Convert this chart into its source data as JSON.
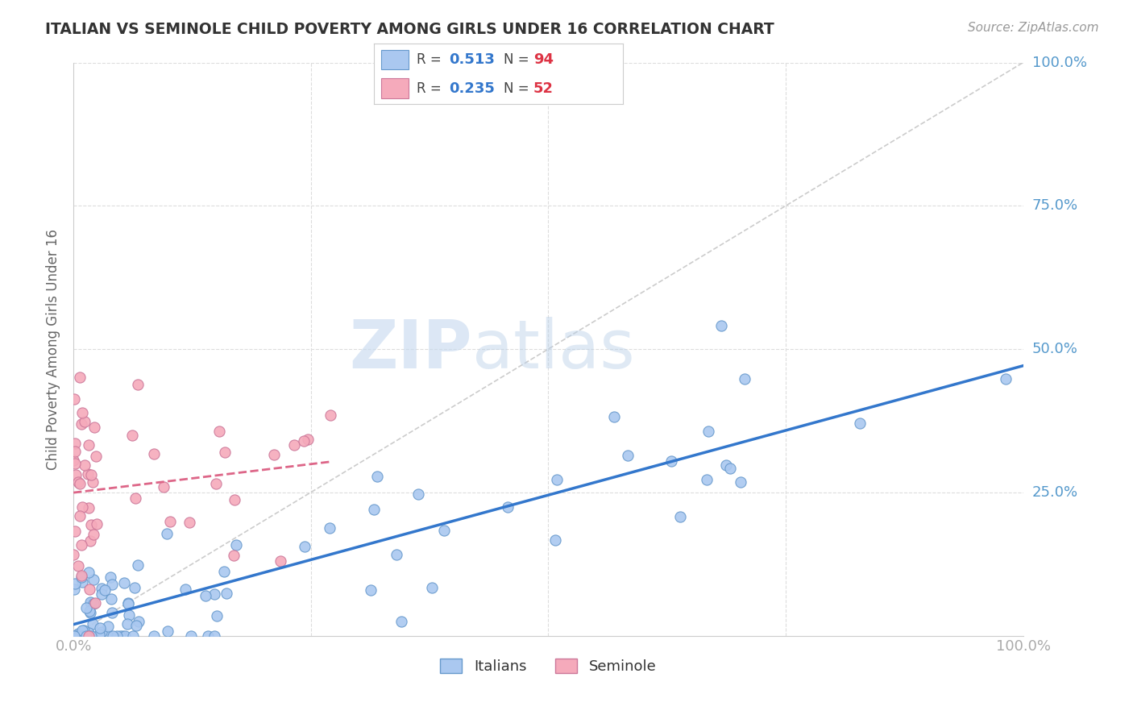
{
  "title": "ITALIAN VS SEMINOLE CHILD POVERTY AMONG GIRLS UNDER 16 CORRELATION CHART",
  "source": "Source: ZipAtlas.com",
  "ylabel": "Child Poverty Among Girls Under 16",
  "xlim": [
    0,
    1
  ],
  "ylim": [
    0,
    1
  ],
  "watermark_zip": "ZIP",
  "watermark_atlas": "atlas",
  "italian_color": "#aac8f0",
  "italian_edge": "#6699cc",
  "seminole_color": "#f5aabb",
  "seminole_edge": "#cc7799",
  "italian_R": 0.513,
  "italian_N": 94,
  "seminole_R": 0.235,
  "seminole_N": 52,
  "italian_line_color": "#3377cc",
  "seminole_line_color": "#dd6688",
  "ref_line_color": "#cccccc",
  "grid_color": "#dddddd",
  "title_color": "#333333",
  "axis_tick_color": "#5599cc",
  "legend_R_color": "#3377cc",
  "legend_N_color": "#dd3344",
  "axis_label_color": "#666666"
}
